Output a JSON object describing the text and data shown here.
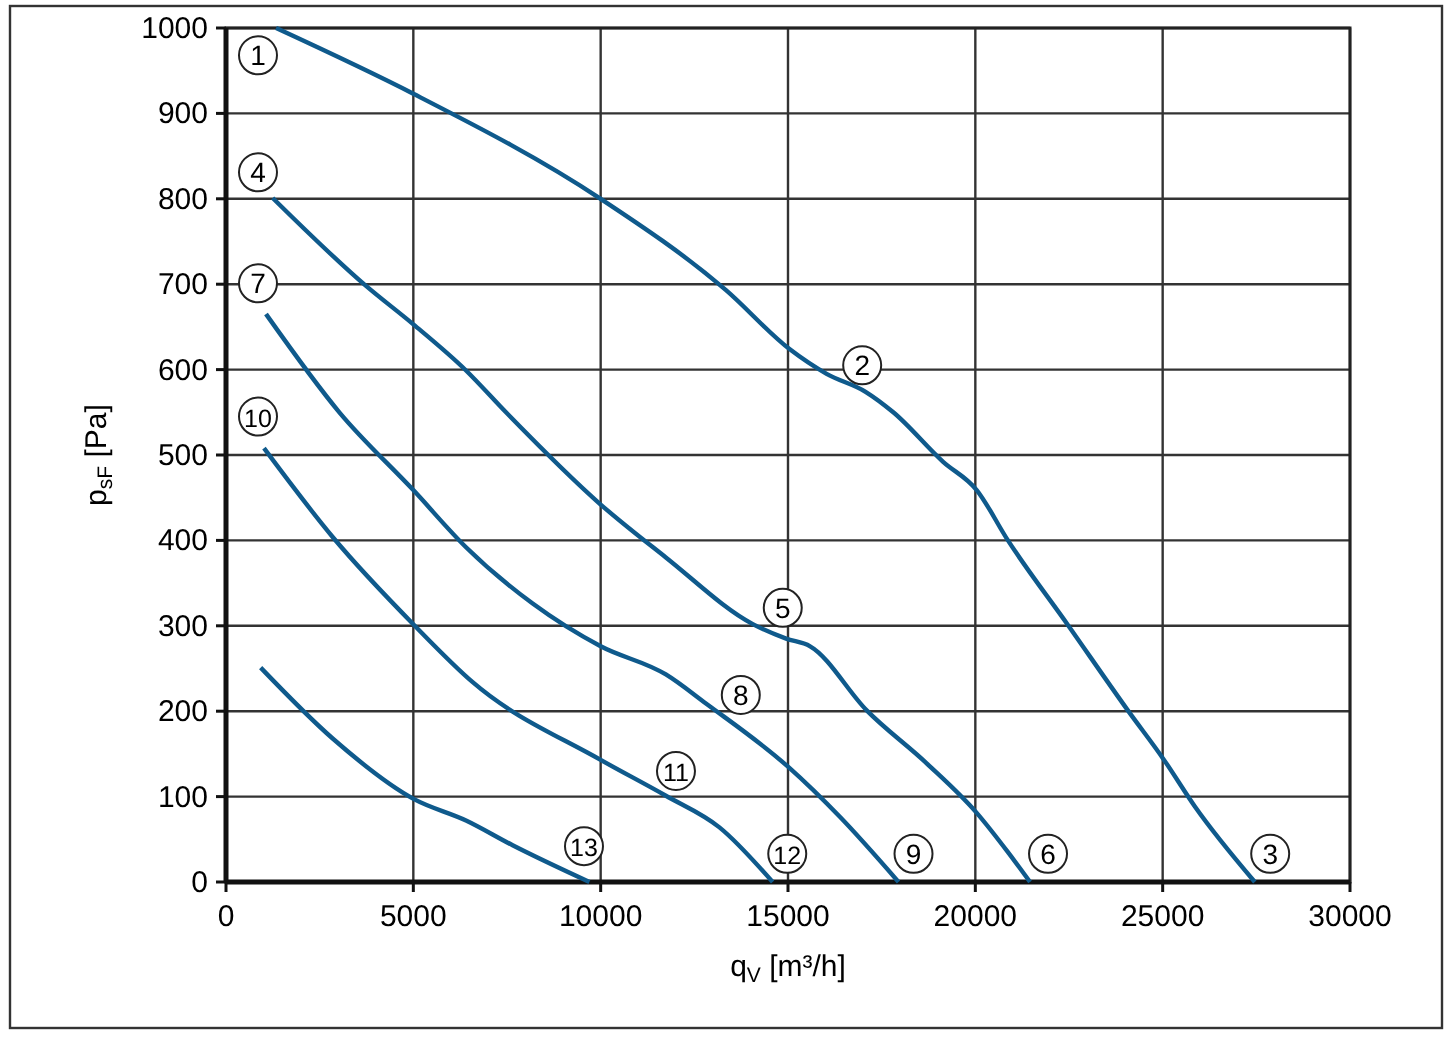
{
  "chart_data": {
    "type": "line",
    "xlabel": "q$_{V}$ [m³/h]",
    "ylabel": "p$_{sF}$ [Pa]",
    "xlim": [
      0,
      30000
    ],
    "xticks": [
      0,
      5000,
      10000,
      15000,
      20000,
      25000,
      30000
    ],
    "ylim": [
      0,
      1000
    ],
    "yticks": [
      0,
      100,
      200,
      300,
      400,
      500,
      600,
      700,
      800,
      900,
      1000
    ],
    "grid": true,
    "marker": "none",
    "line_style": "solid",
    "series": [
      {
        "color": "#0f5a8c",
        "x": [
          1335,
          5000,
          10000,
          13345,
          15040,
          16030,
          17070,
          17810,
          19140,
          20036,
          20870,
          22470,
          24070,
          25036,
          25850,
          27460
        ],
        "values": [
          1000,
          923,
          800,
          693,
          624,
          595,
          574,
          550,
          492,
          459,
          400,
          301,
          201,
          143,
          89,
          0
        ]
      },
      {
        "color": "#0f5a8c",
        "x": [
          1246,
          3737,
          5000,
          6406,
          7473,
          10000,
          11740,
          14060,
          14950,
          15590,
          17100,
          18700,
          20036,
          20870,
          21460
        ],
        "values": [
          801,
          698,
          653,
          599,
          550,
          442,
          380,
          302,
          285,
          276,
          201,
          139,
          81,
          35,
          0
        ]
      },
      {
        "color": "#0f5a8c",
        "x": [
          1068,
          3025,
          5018,
          6406,
          8185,
          10000,
          11740,
          12810,
          15000,
          16390,
          17950
        ],
        "values": [
          665,
          550,
          458,
          392,
          326,
          276,
          243,
          209,
          135,
          76,
          0
        ]
      },
      {
        "color": "#0f5a8c",
        "x": [
          1014,
          2847,
          5018,
          6584,
          10000,
          11740,
          13170,
          14590
        ],
        "values": [
          508,
          404,
          301,
          234,
          143,
          101,
          64,
          0
        ]
      },
      {
        "color": "#0f5a8c",
        "x": [
          925,
          2847,
          5018,
          6406,
          7650,
          9700
        ],
        "values": [
          251,
          168,
          97,
          72,
          43,
          0
        ]
      }
    ],
    "annotations": [
      {
        "text": "1",
        "x": 854,
        "y": 968
      },
      {
        "text": "2",
        "x": 16980,
        "y": 605
      },
      {
        "text": "3",
        "x": 27870,
        "y": 33
      },
      {
        "text": "4",
        "x": 854,
        "y": 831
      },
      {
        "text": "5",
        "x": 14860,
        "y": 321
      },
      {
        "text": "6",
        "x": 21940,
        "y": 33
      },
      {
        "text": "7",
        "x": 854,
        "y": 701
      },
      {
        "text": "8",
        "x": 13740,
        "y": 219
      },
      {
        "text": "9",
        "x": 18350,
        "y": 33
      },
      {
        "text": "10",
        "x": 854,
        "y": 545
      },
      {
        "text": "11",
        "x": 12010,
        "y": 130
      },
      {
        "text": "12",
        "x": 14980,
        "y": 33
      },
      {
        "text": "13",
        "x": 9555,
        "y": 42
      }
    ]
  }
}
